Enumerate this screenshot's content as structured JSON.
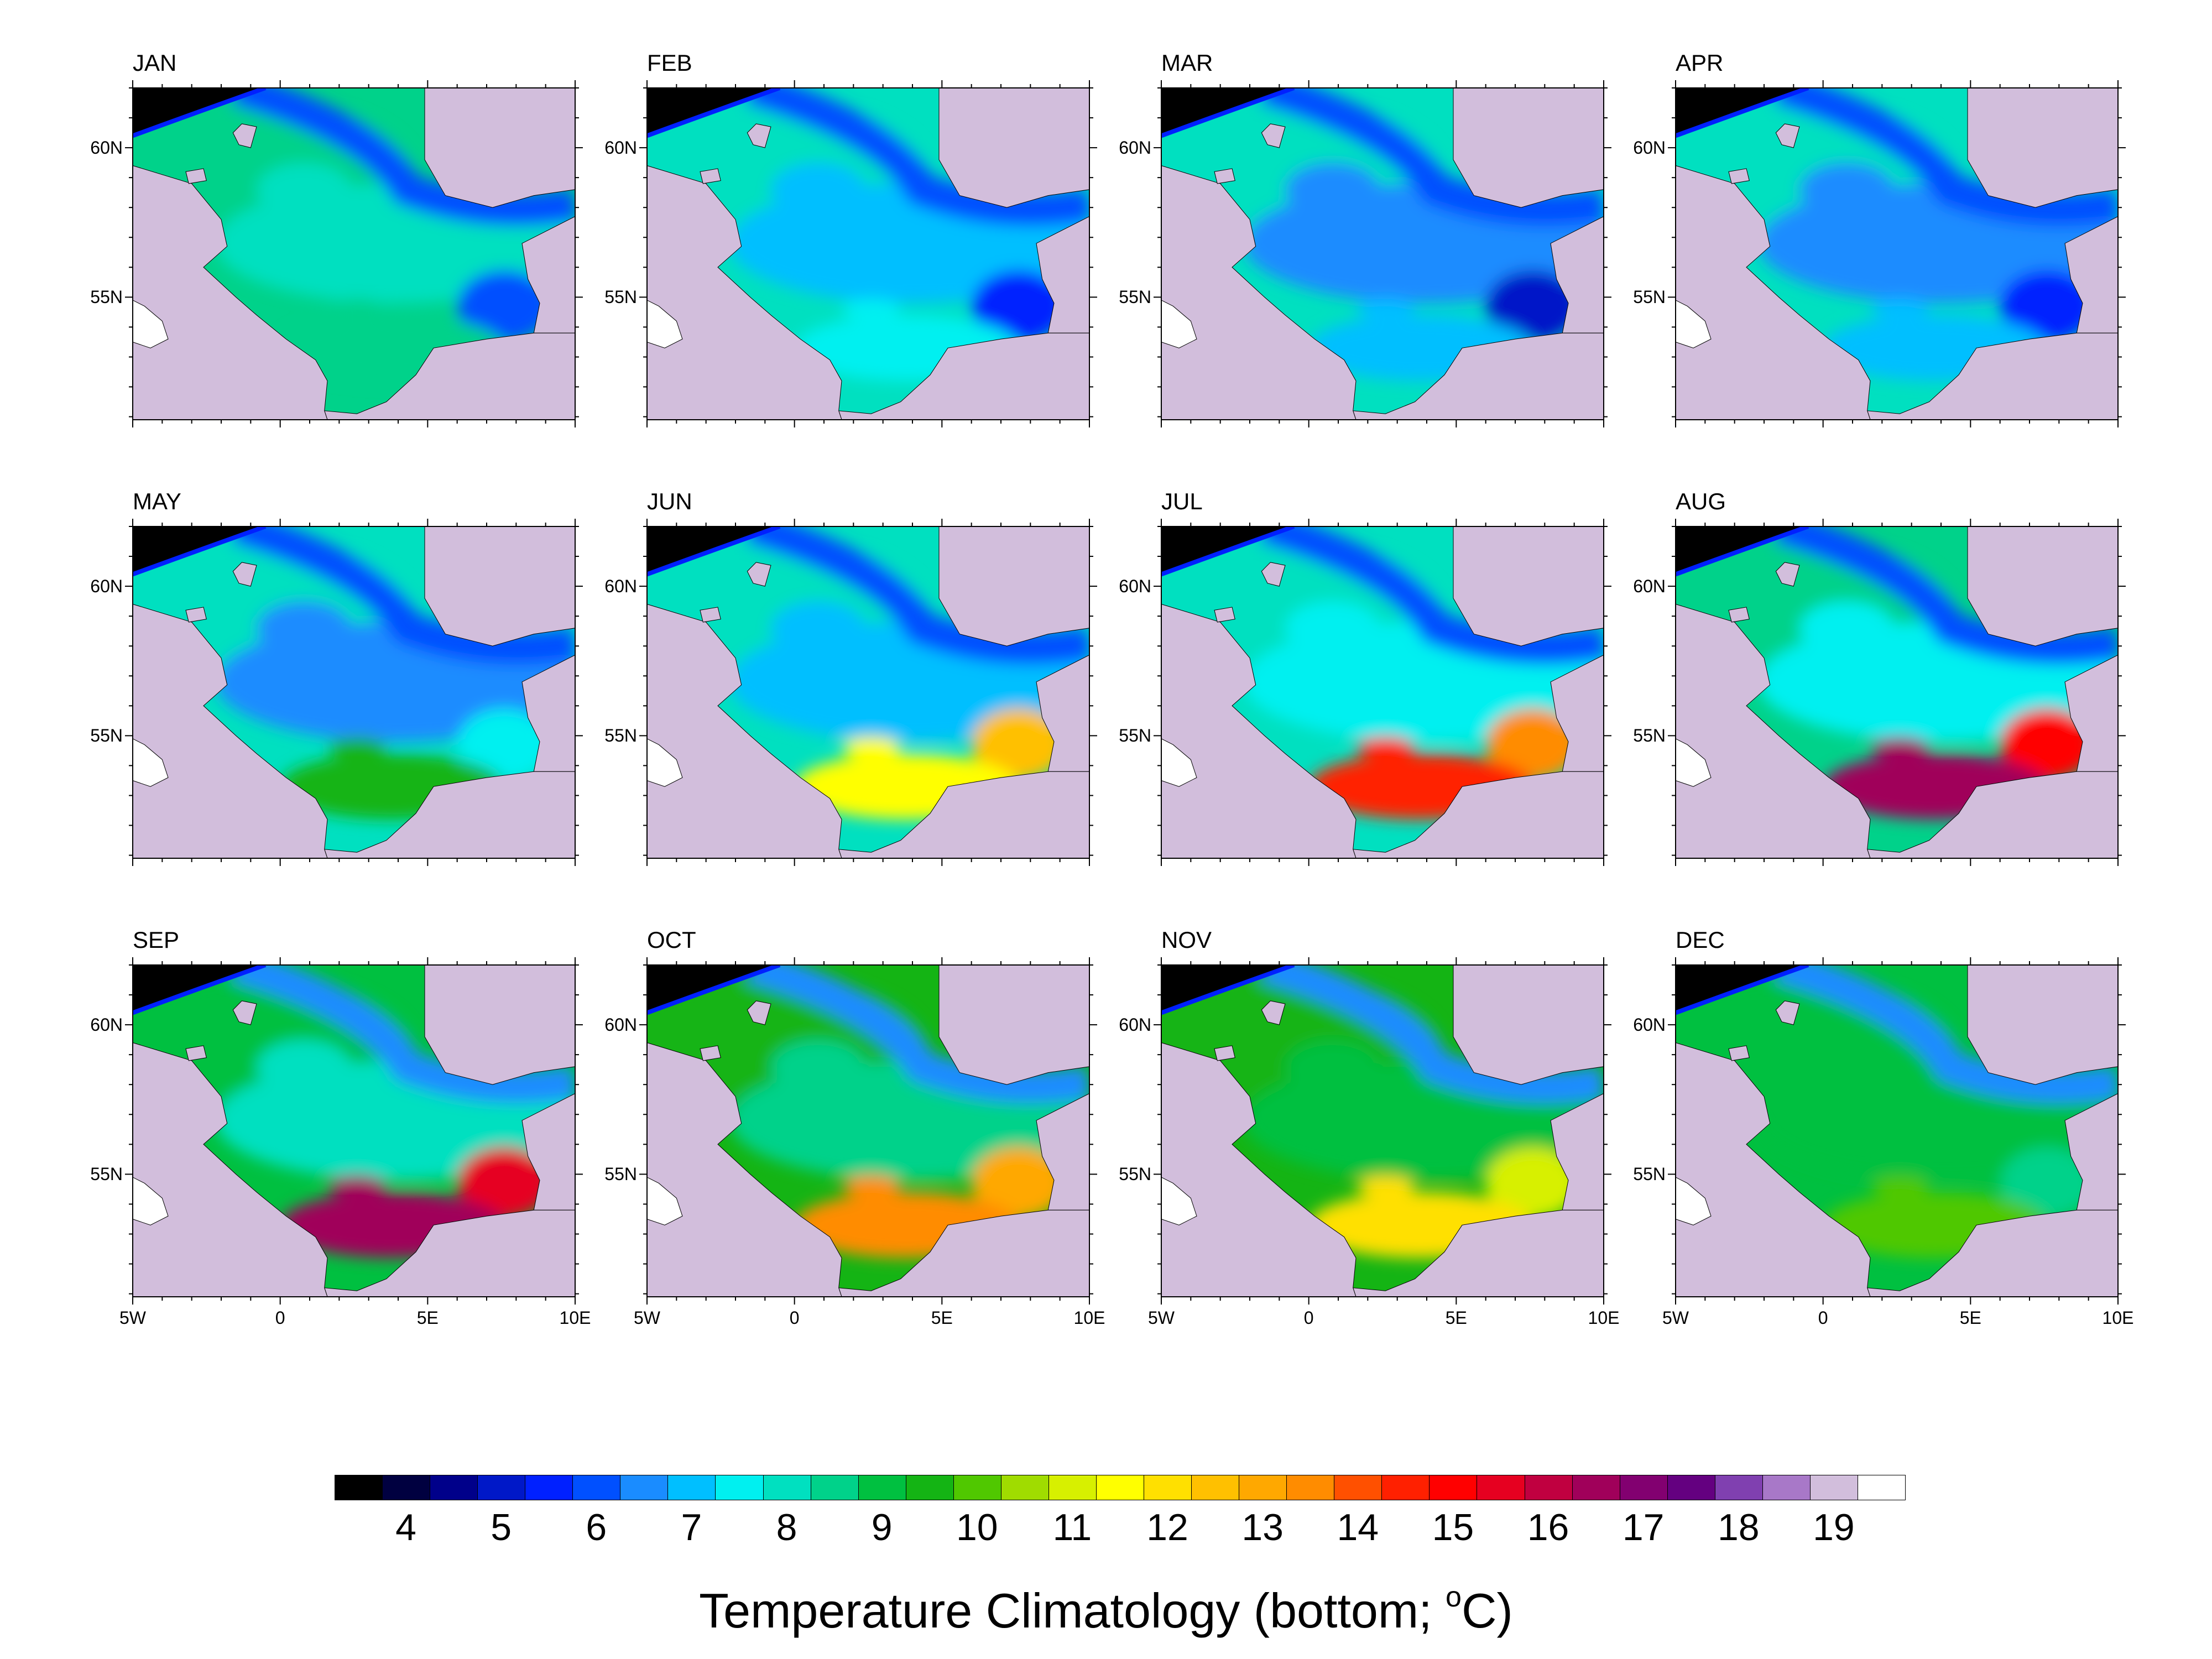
{
  "chart_data": {
    "type": "heatmap",
    "title": "",
    "colorbar_title": "Temperature Climatology (bottom; ",
    "colorbar_unit_sup": "o",
    "colorbar_unit_tail": "C)",
    "panels": [
      {
        "title": "JAN",
        "levels": {
          "north": 8.5,
          "center": 8.3,
          "south": 8.9,
          "east": 6.2,
          "norway": 6.3
        }
      },
      {
        "title": "FEB",
        "levels": {
          "north": 8.3,
          "center": 7.4,
          "south": 7.8,
          "east": 5.6,
          "norway": 6.1
        }
      },
      {
        "title": "MAR",
        "levels": {
          "north": 8.1,
          "center": 6.6,
          "south": 7.2,
          "east": 5.3,
          "norway": 6.1
        }
      },
      {
        "title": "APR",
        "levels": {
          "north": 8.0,
          "center": 6.6,
          "south": 7.4,
          "east": 5.8,
          "norway": 6.1
        }
      },
      {
        "title": "MAY",
        "levels": {
          "north": 8.1,
          "center": 6.9,
          "south": 9.5,
          "east": 7.5,
          "norway": 6.2
        }
      },
      {
        "title": "JUN",
        "levels": {
          "north": 8.2,
          "center": 7.4,
          "south": 11.8,
          "east": 12.8,
          "norway": 6.2
        }
      },
      {
        "title": "JUL",
        "levels": {
          "north": 8.4,
          "center": 7.7,
          "south": 14.5,
          "east": 13.5,
          "norway": 6.2
        }
      },
      {
        "title": "AUG",
        "levels": {
          "north": 8.9,
          "center": 7.9,
          "south": 16.8,
          "east": 15.0,
          "norway": 6.3
        }
      },
      {
        "title": "SEP",
        "levels": {
          "north": 9.4,
          "center": 8.2,
          "south": 16.8,
          "east": 15.6,
          "norway": 6.5
        }
      },
      {
        "title": "OCT",
        "levels": {
          "north": 9.8,
          "center": 8.5,
          "south": 13.8,
          "east": 13.0,
          "norway": 6.6
        }
      },
      {
        "title": "NOV",
        "levels": {
          "north": 9.6,
          "center": 9.4,
          "south": 12.0,
          "east": 11.0,
          "norway": 6.7
        }
      },
      {
        "title": "DEC",
        "levels": {
          "north": 9.2,
          "center": 9.2,
          "south": 10.0,
          "east": 8.5,
          "norway": 6.7
        }
      }
    ],
    "x_ticks": [
      "5W",
      "0",
      "5E",
      "10E"
    ],
    "x_tick_values": [
      -5,
      0,
      5,
      10
    ],
    "y_ticks": [
      "60N",
      "55N"
    ],
    "y_tick_values": [
      60,
      55
    ],
    "lon_range": [
      -5,
      10
    ],
    "lat_range": [
      50.9,
      62
    ],
    "colorbar_ticks": [
      4,
      5,
      6,
      7,
      8,
      9,
      10,
      11,
      12,
      13,
      14,
      15,
      16,
      17,
      18,
      19
    ],
    "colorbar_levels": [
      3.5,
      4.0,
      4.5,
      5.0,
      5.5,
      6.0,
      6.5,
      7.0,
      7.5,
      8.0,
      8.5,
      9.0,
      9.5,
      10.0,
      10.5,
      11.0,
      11.5,
      12.0,
      12.5,
      13.0,
      13.5,
      14.0,
      14.5,
      15.0,
      15.5,
      16.0,
      16.5,
      17.0,
      17.5,
      18.0,
      18.5,
      19.0,
      19.5
    ],
    "colorbar_colors": [
      "#000000",
      "#000040",
      "#00008a",
      "#0018c8",
      "#0020ff",
      "#0050ff",
      "#1a8cff",
      "#00bfff",
      "#00f0f0",
      "#00e0c0",
      "#00d28a",
      "#00c040",
      "#14b414",
      "#50c800",
      "#a0dc00",
      "#d7f000",
      "#ffff00",
      "#ffe000",
      "#ffc000",
      "#ffa800",
      "#ff8c00",
      "#ff5000",
      "#ff2000",
      "#ff0000",
      "#e60020",
      "#c00040",
      "#a0005a",
      "#820070",
      "#640080",
      "#8040b0",
      "#a878c8",
      "#d2bedc",
      "#ffffff"
    ],
    "land_color": "#d2bedc",
    "grid": false,
    "legend": "bottom"
  }
}
